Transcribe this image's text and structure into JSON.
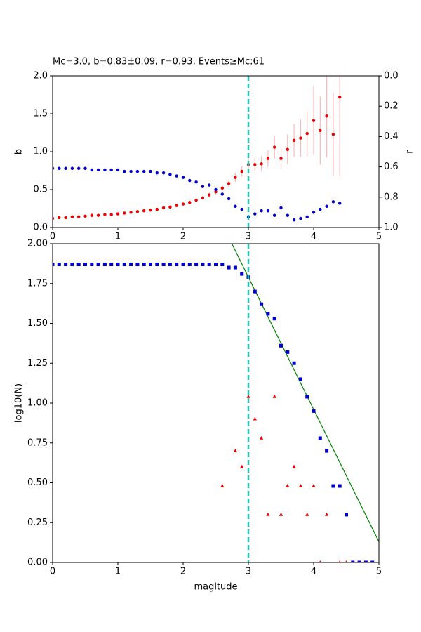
{
  "chart_data": [
    {
      "type": "scatter",
      "title": "Mc=3.0, b=0.83±0.09, r=0.93, Events≥Mc:61",
      "ylabel": "b",
      "y2label": "r",
      "xlim": [
        0,
        5
      ],
      "xticks": [
        0,
        1,
        2,
        3,
        4,
        5
      ],
      "ylim": [
        0,
        2
      ],
      "yticks": [
        {
          "value": 0,
          "label": "0.0"
        },
        {
          "value": 0.5,
          "label": "0.5"
        },
        {
          "value": 1,
          "label": "1.0"
        },
        {
          "value": 1.5,
          "label": "1.5"
        },
        {
          "value": 2,
          "label": "2.0"
        }
      ],
      "y2lim": [
        1,
        0
      ],
      "y2ticks": [
        {
          "value": 0,
          "label": "0.0"
        },
        {
          "value": 0.2,
          "label": "0.2"
        },
        {
          "value": 0.4,
          "label": "0.4"
        },
        {
          "value": 0.6,
          "label": "0.6"
        },
        {
          "value": 0.8,
          "label": "0.8"
        },
        {
          "value": 1,
          "label": "1.0"
        }
      ],
      "mc_line": 3,
      "mc_color": "#1fc4b4",
      "series": [
        {
          "color": "#ee0000",
          "errcolor": "#ffb8b8",
          "marker": "circle",
          "x": [
            0,
            0.1,
            0.2,
            0.3,
            0.4,
            0.5,
            0.6,
            0.7,
            0.8,
            0.9,
            1,
            1.1,
            1.2,
            1.3,
            1.4,
            1.5,
            1.6,
            1.7,
            1.8,
            1.9,
            2,
            2.1,
            2.2,
            2.3,
            2.4,
            2.5,
            2.6,
            2.7,
            2.8,
            2.9,
            3,
            3.1,
            3.2,
            3.3,
            3.4,
            3.5,
            3.6,
            3.7,
            3.8,
            3.9,
            4,
            4.1,
            4.2,
            4.3,
            4.4
          ],
          "values": [
            0.12,
            0.13,
            0.13,
            0.14,
            0.14,
            0.15,
            0.16,
            0.16,
            0.17,
            0.17,
            0.18,
            0.19,
            0.2,
            0.21,
            0.22,
            0.23,
            0.24,
            0.26,
            0.27,
            0.29,
            0.31,
            0.33,
            0.36,
            0.39,
            0.43,
            0.47,
            0.52,
            0.58,
            0.66,
            0.74,
            0.83,
            0.83,
            0.84,
            0.91,
            1.06,
            0.91,
            1.03,
            1.15,
            1.18,
            1.24,
            1.41,
            1.28,
            1.47,
            1.23,
            1.72
          ],
          "errors": [
            0.01,
            0.01,
            0.01,
            0.01,
            0.01,
            0.01,
            0.01,
            0.01,
            0.01,
            0.01,
            0.01,
            0.01,
            0.01,
            0.01,
            0.01,
            0.01,
            0.01,
            0.01,
            0.01,
            0.01,
            0.02,
            0.02,
            0.02,
            0.02,
            0.03,
            0.03,
            0.04,
            0.05,
            0.06,
            0.07,
            0.09,
            0.09,
            0.1,
            0.11,
            0.15,
            0.14,
            0.2,
            0.22,
            0.25,
            0.3,
            0.45,
            0.45,
            0.55,
            0.55,
            1.05
          ]
        },
        {
          "color": "#0000cc",
          "marker": "circle",
          "axis": "y2",
          "x": [
            0,
            0.1,
            0.2,
            0.3,
            0.4,
            0.5,
            0.6,
            0.7,
            0.8,
            0.9,
            1,
            1.1,
            1.2,
            1.3,
            1.4,
            1.5,
            1.6,
            1.7,
            1.8,
            1.9,
            2,
            2.1,
            2.2,
            2.3,
            2.4,
            2.5,
            2.6,
            2.7,
            2.8,
            2.9,
            3,
            3.1,
            3.2,
            3.3,
            3.4,
            3.5,
            3.6,
            3.7,
            3.8,
            3.9,
            4,
            4.1,
            4.2,
            4.3,
            4.4
          ],
          "values": [
            0.61,
            0.61,
            0.61,
            0.61,
            0.61,
            0.61,
            0.62,
            0.62,
            0.62,
            0.62,
            0.62,
            0.63,
            0.63,
            0.63,
            0.63,
            0.63,
            0.64,
            0.64,
            0.65,
            0.66,
            0.67,
            0.69,
            0.7,
            0.73,
            0.72,
            0.75,
            0.78,
            0.81,
            0.86,
            0.88,
            0.93,
            0.91,
            0.89,
            0.89,
            0.92,
            0.87,
            0.92,
            0.95,
            0.94,
            0.93,
            0.9,
            0.88,
            0.86,
            0.83,
            0.84
          ]
        }
      ]
    },
    {
      "type": "scatter",
      "xlabel": "magitude",
      "ylabel": "log10(N)",
      "xlim": [
        0,
        5
      ],
      "xticks": [
        0,
        1,
        2,
        3,
        4,
        5
      ],
      "ylim": [
        0,
        2
      ],
      "yticks": [
        {
          "value": 0,
          "label": "0.00"
        },
        {
          "value": 0.25,
          "label": "0.25"
        },
        {
          "value": 0.5,
          "label": "0.50"
        },
        {
          "value": 0.75,
          "label": "0.75"
        },
        {
          "value": 1,
          "label": "1.00"
        },
        {
          "value": 1.25,
          "label": "1.25"
        },
        {
          "value": 1.5,
          "label": "1.50"
        },
        {
          "value": 1.75,
          "label": "1.75"
        },
        {
          "value": 2,
          "label": "2.00"
        }
      ],
      "mc_line": 3,
      "mc_color": "#1fc4b4",
      "fit": {
        "a": 4.28,
        "b": 0.83,
        "color": "#008000"
      },
      "series": [
        {
          "color": "#0000cc",
          "marker": "square",
          "x": [
            0,
            0.1,
            0.2,
            0.3,
            0.4,
            0.5,
            0.6,
            0.7,
            0.8,
            0.9,
            1,
            1.1,
            1.2,
            1.3,
            1.4,
            1.5,
            1.6,
            1.7,
            1.8,
            1.9,
            2,
            2.1,
            2.2,
            2.3,
            2.4,
            2.5,
            2.6,
            2.7,
            2.8,
            2.9,
            3,
            3.1,
            3.2,
            3.3,
            3.4,
            3.5,
            3.6,
            3.7,
            3.8,
            3.9,
            4,
            4.1,
            4.2,
            4.3,
            4.4,
            4.5,
            4.6,
            4.7,
            4.8,
            4.9
          ],
          "values": [
            1.87,
            1.87,
            1.87,
            1.87,
            1.87,
            1.87,
            1.87,
            1.87,
            1.87,
            1.87,
            1.87,
            1.87,
            1.87,
            1.87,
            1.87,
            1.87,
            1.87,
            1.87,
            1.87,
            1.87,
            1.87,
            1.87,
            1.87,
            1.87,
            1.87,
            1.87,
            1.87,
            1.85,
            1.85,
            1.81,
            1.79,
            1.7,
            1.62,
            1.56,
            1.53,
            1.36,
            1.32,
            1.25,
            1.15,
            1.04,
            0.95,
            0.78,
            0.7,
            0.48,
            0.48,
            0.3,
            0,
            0,
            0,
            0
          ]
        },
        {
          "color": "#ee0000",
          "marker": "triangle",
          "x": [
            2.6,
            2.8,
            2.9,
            3,
            3.1,
            3.2,
            3.3,
            3.4,
            3.5,
            3.6,
            3.7,
            3.8,
            3.9,
            4,
            4.1,
            4.2,
            4.4,
            4.5
          ],
          "values": [
            0.48,
            0.7,
            0.6,
            1.04,
            0.9,
            0.78,
            0.3,
            1.04,
            0.3,
            0.48,
            0.6,
            0.48,
            0.3,
            0.48,
            0,
            0.3,
            0,
            0
          ]
        }
      ]
    }
  ]
}
